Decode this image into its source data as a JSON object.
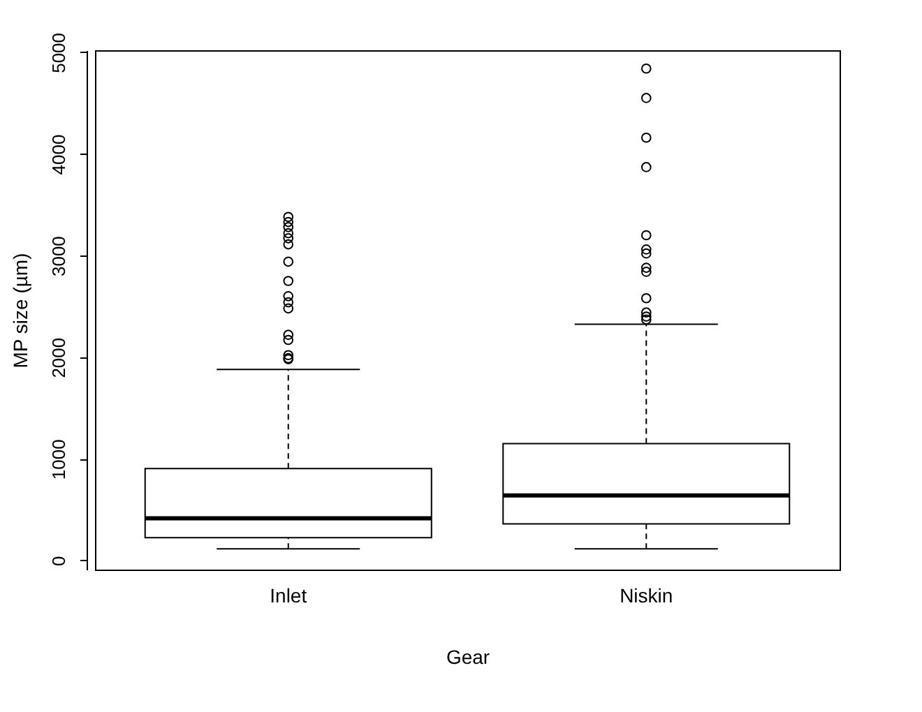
{
  "chart_data": {
    "type": "box",
    "xlabel": "Gear",
    "ylabel": "MP size (µm)",
    "categories": [
      "Inlet",
      "Niskin"
    ],
    "boxes": [
      {
        "low": 115,
        "q1": 225,
        "median": 415,
        "q3": 905,
        "high": 1880,
        "outliers": [
          3380,
          3330,
          3280,
          3220,
          3170,
          3110,
          2940,
          2750,
          2600,
          2540,
          2480,
          2220,
          2170,
          2020,
          1990,
          1980
        ]
      },
      {
        "low": 115,
        "q1": 360,
        "median": 640,
        "q3": 1150,
        "high": 2325,
        "outliers": [
          4840,
          4550,
          4160,
          3870,
          3200,
          3060,
          3020,
          2880,
          2840,
          2580,
          2440,
          2400,
          2370
        ]
      }
    ],
    "color": "#000000",
    "ylim": [
      -90,
      5020
    ],
    "yticks": [
      0,
      1000,
      2000,
      3000,
      4000,
      5000
    ],
    "grid": false,
    "marker": "circle",
    "line_style": "dashed"
  }
}
